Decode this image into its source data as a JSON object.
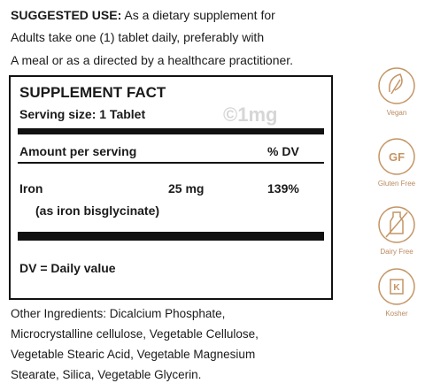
{
  "suggested_use": {
    "label": "SUGGESTED USE:",
    "lines": [
      "As a dietary supplement for",
      "Adults take one (1) tablet daily, preferably with",
      "A meal or as a directed by a healthcare practitioner."
    ]
  },
  "supplement_facts": {
    "title": "SUPPLEMENT FACT",
    "serving_size": "Serving size: 1 Tablet",
    "watermark": "©1mg",
    "header": {
      "amount": "Amount per serving",
      "dv": "% DV"
    },
    "rows": [
      {
        "name": "Iron",
        "amount": "25 mg",
        "dv": "139%",
        "note": "(as iron bisglycinate)"
      }
    ],
    "footnote": "DV = Daily value"
  },
  "other_ingredients": [
    "Other Ingredients: Dicalcium Phosphate,",
    "Microcrystalline cellulose, Vegetable Cellulose,",
    "Vegetable Stearic Acid, Vegetable Magnesium",
    "Stearate, Silica, Vegetable Glycerin."
  ],
  "badges": [
    {
      "label": "Vegan"
    },
    {
      "label": "Gluten Free",
      "icon_text": "GF"
    },
    {
      "label": "Dairy Free"
    },
    {
      "label": "Kosher",
      "icon_text": "K"
    }
  ]
}
